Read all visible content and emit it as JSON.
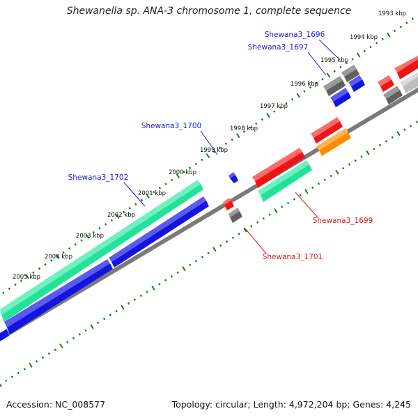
{
  "title": "Shewanella sp. ANA-3 chromosome 1, complete sequence",
  "accession": "Accession: NC_008577",
  "summary": "Topology: circular; Length: 4,972,204 bp; Genes: 4,245",
  "ticks": [
    {
      "label": "1993 kbp"
    },
    {
      "label": "1994 kbp"
    },
    {
      "label": "1995 kbp"
    },
    {
      "label": "1996 kbp"
    },
    {
      "label": "1997 kbp"
    },
    {
      "label": "1998 kbp"
    },
    {
      "label": "1999 kbp"
    },
    {
      "label": "2000 kbp"
    },
    {
      "label": "2001 kbp"
    },
    {
      "label": "2002 kbp"
    },
    {
      "label": "2003 kbp"
    },
    {
      "label": "2004 kbp"
    },
    {
      "label": "2005 kbp"
    }
  ],
  "gene_labels": [
    {
      "text": "Shewana3_1696",
      "color": "#1a1ad6"
    },
    {
      "text": "Shewana3_1697",
      "color": "#1a1ad6"
    },
    {
      "text": "Shewana3_1700",
      "color": "#1a1ad6"
    },
    {
      "text": "Shewana3_1702",
      "color": "#1a1ad6"
    },
    {
      "text": "Shewana3_1699",
      "color": "#d61a1a"
    },
    {
      "text": "Shewana3_1701",
      "color": "#d61a1a"
    }
  ],
  "colors": {
    "blue": "#1414e0",
    "green": "#22e29a",
    "red": "#ee1414",
    "gray": "#606060",
    "lightgray": "#bdbdbd",
    "orange": "#ff8c00",
    "backbone": "#7a7a7a",
    "tickgreen": "#1a7a1a"
  }
}
